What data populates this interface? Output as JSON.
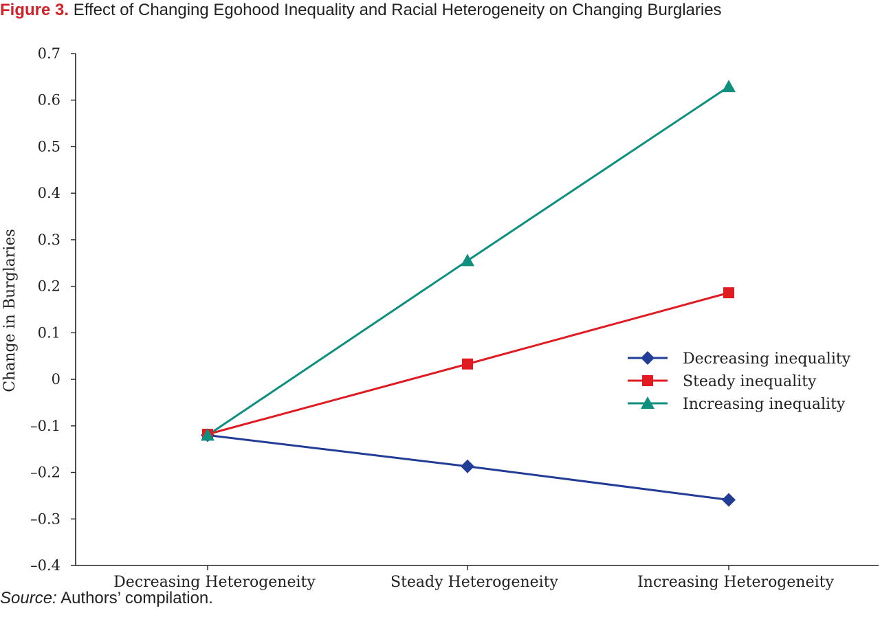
{
  "figure": {
    "label": "Figure 3.",
    "title": "Effect of Changing Egohood Inequality and Racial Heterogeneity on Changing Burglaries"
  },
  "source": {
    "label": "Source:",
    "text": "Authors’ compilation."
  },
  "chart_data": {
    "type": "line",
    "title": "Effect of Changing Egohood Inequality and Racial Heterogeneity on Changing Burglaries",
    "xlabel": "",
    "ylabel": "Change in Burglaries",
    "categories": [
      "Decreasing Heterogeneity",
      "Steady Heterogeneity",
      "Increasing Heterogeneity"
    ],
    "ylim": [
      -0.4,
      0.7
    ],
    "yticks": [
      0.7,
      0.6,
      0.5,
      0.4,
      0.3,
      0.2,
      0.1,
      0,
      -0.1,
      -0.2,
      -0.3,
      -0.4
    ],
    "ytick_labels": [
      "0.7",
      "0.6",
      "0.5",
      "0.4",
      "0.3",
      "0.2",
      "0.1",
      "0",
      "–0.1",
      "–0.2",
      "–0.3",
      "–0.4"
    ],
    "grid": false,
    "legend_position": "right",
    "series": [
      {
        "name": "Decreasing inequality",
        "values": [
          -0.12,
          -0.187,
          -0.259
        ],
        "color": "#233c96",
        "marker": "diamond"
      },
      {
        "name": "Steady inequality",
        "values": [
          -0.118,
          0.033,
          0.186
        ],
        "color": "#e01b22",
        "marker": "square"
      },
      {
        "name": "Increasing inequality",
        "values": [
          -0.12,
          0.255,
          0.629
        ],
        "color": "#0f907f",
        "marker": "triangle"
      }
    ]
  }
}
